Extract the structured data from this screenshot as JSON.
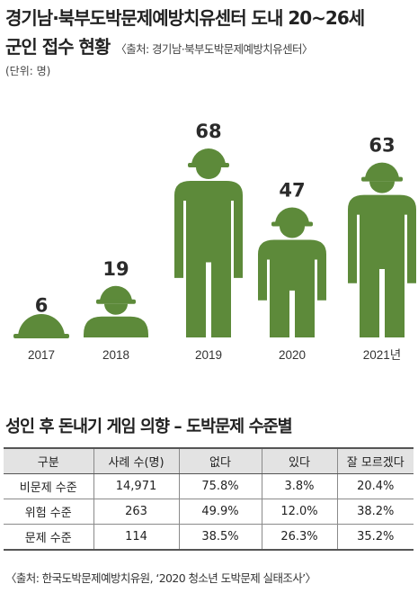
{
  "header": {
    "title_line1": "경기남·북부도박문제예방치유센터 도내 20~26세",
    "title_line2": "군인 접수 현황",
    "source": "〈출처: 경기남·북부도박문제예방치유센터〉",
    "unit": "(단위: 명)"
  },
  "chart_data": {
    "type": "bar",
    "categories": [
      "2017",
      "2018",
      "2019",
      "2020",
      "2021년"
    ],
    "values": [
      6,
      19,
      68,
      47,
      63
    ],
    "title": "경기남·북부도박문제예방치유센터 도내 20~26세 군인 접수 현황",
    "ylabel": "(단위: 명)",
    "ylim": [
      0,
      68
    ],
    "grid": false,
    "color": "#5d8a3a"
  },
  "table": {
    "title": "성인 후 돈내기 게임 의향 – 도박문제 수준별",
    "headers": [
      "구분",
      "사례 수(명)",
      "없다",
      "있다",
      "잘 모르겠다"
    ],
    "rows": [
      [
        "비문제 수준",
        "14,971",
        "75.8%",
        "3.8%",
        "20.4%"
      ],
      [
        "위험 수준",
        "263",
        "49.9%",
        "12.0%",
        "38.2%"
      ],
      [
        "문제 수준",
        "114",
        "38.5%",
        "26.3%",
        "35.2%"
      ]
    ],
    "source": "〈출처: 한국도박문제예방치유원, ‘2020 청소년 도박문제 실태조사’〉"
  }
}
